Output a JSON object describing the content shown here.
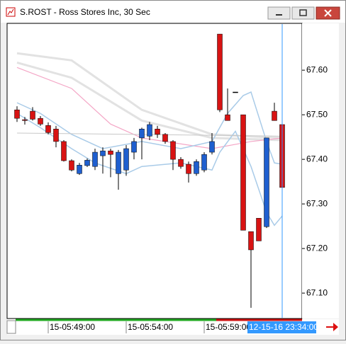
{
  "window_title": "S.ROST - Ross Stores Inc, 30 Sec",
  "chart_data": {
    "type": "candlestick",
    "categories": [
      null,
      null,
      null,
      null,
      "15-05:49:00",
      null,
      null,
      null,
      null,
      null,
      null,
      null,
      null,
      null,
      "15-05:54:00",
      null,
      null,
      null,
      null,
      null,
      null,
      null,
      null,
      null,
      "15-05:59:00",
      null,
      null,
      null,
      null,
      null,
      null,
      null,
      null,
      null,
      null
    ],
    "open": [
      67.511,
      67.489,
      67.508,
      67.492,
      67.476,
      67.468,
      67.44,
      67.397,
      67.368,
      67.386,
      67.384,
      67.408,
      67.419,
      67.368,
      67.376,
      67.416,
      67.448,
      67.452,
      67.468,
      67.456,
      67.44,
      67.4,
      67.389,
      67.368,
      67.376,
      67.416,
      67.681,
      67.5,
      67.551,
      67.5,
      67.238,
      67.268,
      67.249,
      67.508,
      67.478
    ],
    "high": [
      67.519,
      67.495,
      67.517,
      67.497,
      67.483,
      67.475,
      67.443,
      67.4,
      67.392,
      67.402,
      67.424,
      67.427,
      67.424,
      67.421,
      67.432,
      67.448,
      67.471,
      67.484,
      67.475,
      67.459,
      67.443,
      67.405,
      67.395,
      67.4,
      67.416,
      67.459,
      67.681,
      67.559,
      67.551,
      67.5,
      67.238,
      67.268,
      67.448,
      67.527,
      67.479
    ],
    "low": [
      67.484,
      67.478,
      67.487,
      67.475,
      67.456,
      67.427,
      67.395,
      67.373,
      67.365,
      67.383,
      67.376,
      67.368,
      67.36,
      67.332,
      67.363,
      67.4,
      67.4,
      67.443,
      67.448,
      67.435,
      67.376,
      67.379,
      67.348,
      67.363,
      67.371,
      67.411,
      67.506,
      67.487,
      67.551,
      67.241,
      67.067,
      67.217,
      67.246,
      67.487,
      67.332
    ],
    "close": [
      67.492,
      67.487,
      67.49,
      67.479,
      67.46,
      67.44,
      67.397,
      67.376,
      67.387,
      67.398,
      67.416,
      67.419,
      67.411,
      67.416,
      67.424,
      67.44,
      67.468,
      67.478,
      67.456,
      67.44,
      67.4,
      67.384,
      67.368,
      67.395,
      67.411,
      67.44,
      67.511,
      67.487,
      67.551,
      67.241,
      67.197,
      67.217,
      67.448,
      67.487,
      67.337
    ],
    "up_color": "#1f5fcf",
    "down_color": "#d81313",
    "doji_color": "#000000",
    "lines": [
      {
        "color": "#e2e2e2",
        "width": 3,
        "x": [
          0,
          7,
          16,
          25,
          34
        ],
        "values": [
          67.638,
          67.622,
          67.511,
          67.456,
          67.448
        ]
      },
      {
        "color": "#e2e2e2",
        "width": 3,
        "x": [
          0,
          7,
          16,
          25,
          34
        ],
        "values": [
          67.617,
          67.583,
          67.487,
          67.448,
          67.443
        ]
      },
      {
        "color": "#f4a6c6",
        "width": 1.2,
        "x": [
          0,
          7,
          12,
          16,
          25,
          30,
          34
        ],
        "values": [
          67.606,
          67.559,
          67.479,
          67.448,
          67.424,
          67.44,
          67.448
        ]
      },
      {
        "color": "#a9cbe8",
        "width": 1.5,
        "x": [
          0,
          3,
          7,
          11,
          16,
          21,
          25,
          27,
          29,
          30,
          32,
          33,
          34
        ],
        "values": [
          67.527,
          67.503,
          67.456,
          67.424,
          67.44,
          67.424,
          67.44,
          67.503,
          67.543,
          67.551,
          67.44,
          67.392,
          67.389
        ]
      },
      {
        "color": "#a9cbe8",
        "width": 1.5,
        "x": [
          0,
          3,
          7,
          10,
          14,
          16,
          21,
          25,
          26,
          28,
          30,
          32,
          33,
          34
        ],
        "values": [
          67.503,
          67.471,
          67.424,
          67.392,
          67.368,
          67.384,
          67.392,
          67.376,
          67.416,
          67.463,
          67.384,
          67.281,
          67.252,
          67.273
        ]
      },
      {
        "color": "#c8c8c8",
        "width": 1,
        "x": [
          0,
          34
        ],
        "values": [
          67.459,
          67.452
        ]
      }
    ],
    "cursor": {
      "index": 34,
      "label": "12-15-16 23:34:00",
      "color": "#3399ff"
    },
    "ylim": [
      67.043,
      67.705
    ],
    "yticks": [
      {
        "value": 67.1,
        "label": "67.10"
      },
      {
        "value": 67.2,
        "label": "67.20"
      },
      {
        "value": 67.3,
        "label": "67.30"
      },
      {
        "value": 67.4,
        "label": "67.40"
      },
      {
        "value": 67.5,
        "label": "67.50"
      },
      {
        "value": 67.6,
        "label": "67.60"
      }
    ]
  }
}
